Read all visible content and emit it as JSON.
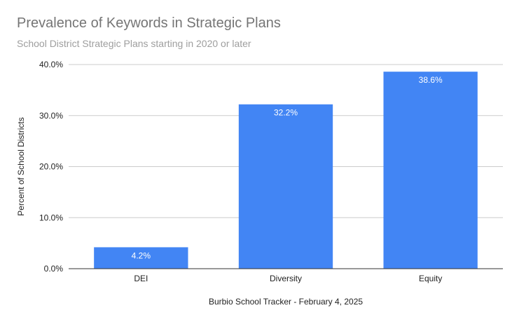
{
  "chart_data": {
    "type": "bar",
    "title": "Prevalence of Keywords in Strategic Plans",
    "subtitle": "School District Strategic Plans starting in 2020 or later",
    "xlabel": "Burbio School Tracker - February 4, 2025",
    "ylabel": "Percent of School Districts",
    "categories": [
      "DEI",
      "Diversity",
      "Equity"
    ],
    "values": [
      4.2,
      32.2,
      38.6
    ],
    "data_labels": [
      "4.2%",
      "32.2%",
      "38.6%"
    ],
    "ylim": [
      0,
      40
    ],
    "yticks": [
      0,
      10,
      20,
      30,
      40
    ],
    "ytick_labels": [
      "0.0%",
      "10.0%",
      "20.0%",
      "30.0%",
      "40.0%"
    ],
    "grid": true,
    "bar_color": "#4285f4"
  }
}
